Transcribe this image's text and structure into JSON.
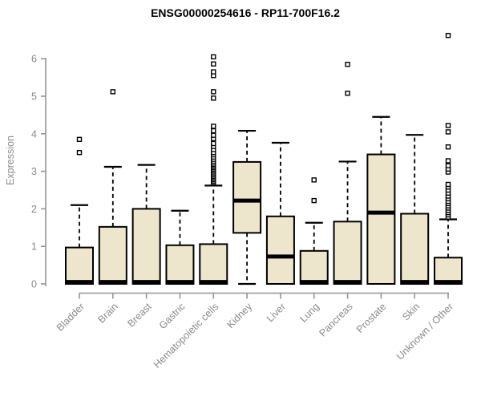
{
  "chart_data": {
    "type": "boxplot",
    "title": "ENSG00000254616 - RP11-700F16.2",
    "ylabel": "Expression",
    "xlabel": "",
    "yticks": [
      0,
      1,
      2,
      3,
      4,
      5,
      6
    ],
    "ylim": [
      0,
      6.8
    ],
    "grid": false,
    "legend": "none",
    "categories": [
      "Bladder",
      "Brain",
      "Breast",
      "Gastric",
      "Hematopoietic cells",
      "Kidney",
      "Liver",
      "Lung",
      "Pancreas",
      "Prostate",
      "Skin",
      "Unknown / Other"
    ],
    "boxes": [
      {
        "category": "Bladder",
        "q1": 0,
        "median": 0.05,
        "q3": 0.97,
        "whisker_low": 0,
        "whisker_high": 2.1,
        "outliers": [
          3.5,
          3.85
        ]
      },
      {
        "category": "Brain",
        "q1": 0,
        "median": 0.05,
        "q3": 1.52,
        "whisker_low": 0,
        "whisker_high": 3.12,
        "outliers": [
          5.12
        ]
      },
      {
        "category": "Breast",
        "q1": 0,
        "median": 0.05,
        "q3": 2.0,
        "whisker_low": 0,
        "whisker_high": 3.17,
        "outliers": []
      },
      {
        "category": "Gastric",
        "q1": 0,
        "median": 0.05,
        "q3": 1.03,
        "whisker_low": 0,
        "whisker_high": 1.95,
        "outliers": []
      },
      {
        "category": "Hematopoietic cells",
        "q1": 0,
        "median": 0.05,
        "q3": 1.06,
        "whisker_low": 0,
        "whisker_high": 2.62,
        "outliers": [
          2.7,
          2.74,
          2.78,
          2.82,
          2.86,
          2.9,
          2.94,
          2.98,
          3.02,
          3.06,
          3.1,
          3.14,
          3.18,
          3.22,
          3.27,
          3.32,
          3.38,
          3.44,
          3.5,
          3.58,
          3.66,
          3.74,
          3.87,
          3.96,
          4.08,
          4.2,
          4.95,
          5.12,
          5.55,
          5.65,
          5.86,
          6.05
        ]
      },
      {
        "category": "Kidney",
        "q1": 1.36,
        "median": 2.22,
        "q3": 3.25,
        "whisker_low": 0,
        "whisker_high": 4.08,
        "outliers": []
      },
      {
        "category": "Liver",
        "q1": 0,
        "median": 0.73,
        "q3": 1.8,
        "whisker_low": 0,
        "whisker_high": 3.76,
        "outliers": []
      },
      {
        "category": "Lung",
        "q1": 0,
        "median": 0.05,
        "q3": 0.88,
        "whisker_low": 0,
        "whisker_high": 1.63,
        "outliers": [
          2.22,
          2.77
        ]
      },
      {
        "category": "Pancreas",
        "q1": 0,
        "median": 0.05,
        "q3": 1.66,
        "whisker_low": 0,
        "whisker_high": 3.26,
        "outliers": [
          5.08,
          5.85
        ]
      },
      {
        "category": "Prostate",
        "q1": 0,
        "median": 1.9,
        "q3": 3.45,
        "whisker_low": 0,
        "whisker_high": 4.45,
        "outliers": []
      },
      {
        "category": "Skin",
        "q1": 0,
        "median": 0.05,
        "q3": 1.87,
        "whisker_low": 0,
        "whisker_high": 3.97,
        "outliers": []
      },
      {
        "category": "Unknown / Other",
        "q1": 0,
        "median": 0.05,
        "q3": 0.7,
        "whisker_low": 0,
        "whisker_high": 1.72,
        "outliers": [
          1.78,
          1.84,
          1.9,
          1.96,
          2.02,
          2.08,
          2.14,
          2.2,
          2.27,
          2.34,
          2.42,
          2.5,
          2.58,
          2.65,
          2.98,
          3.06,
          3.15,
          3.28,
          3.65,
          4.05,
          4.22,
          6.62
        ]
      }
    ],
    "colors": {
      "background": "#ffffff",
      "box_fill": "#ede6cc",
      "box_border": "#000000",
      "median": "#000000",
      "whisker": "#000000",
      "outlier_fill": "#ffffff",
      "outlier_stroke": "#000000",
      "axis": "#959595",
      "tick_label": "#8a8a8a",
      "title": "#000000"
    }
  }
}
